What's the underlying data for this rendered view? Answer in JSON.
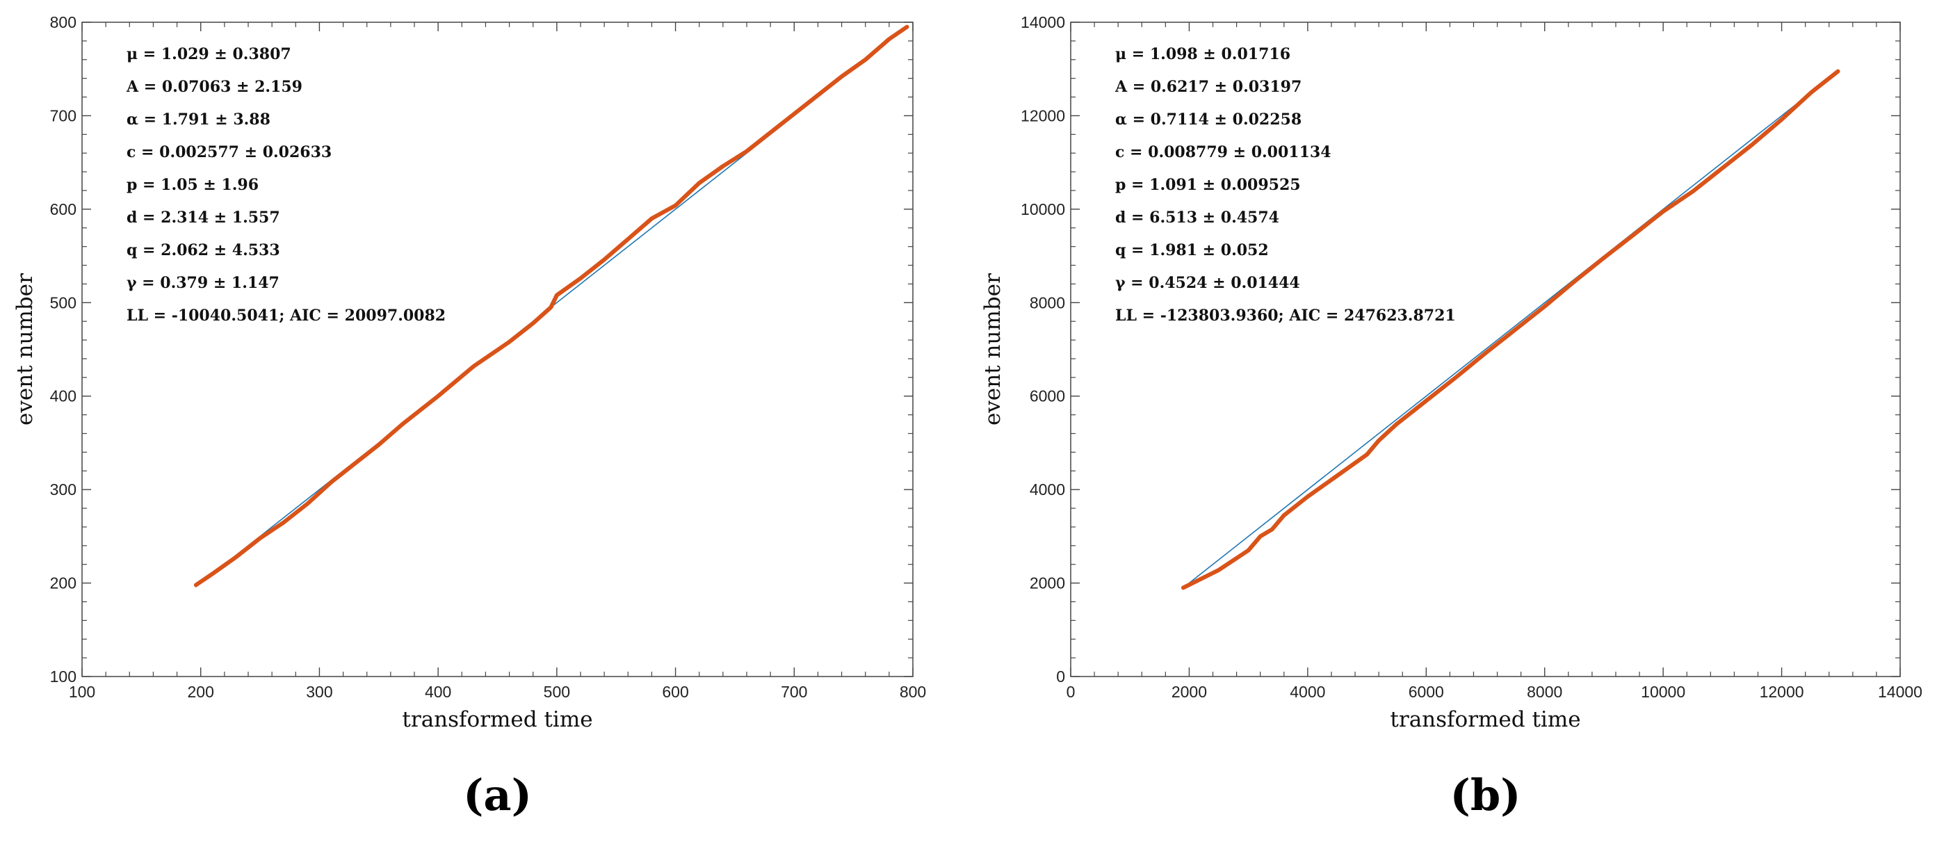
{
  "chart_data": [
    {
      "type": "line",
      "panel_label": "(a)",
      "xlabel": "transformed time",
      "ylabel": "event number",
      "xlim": [
        100,
        800
      ],
      "ylim": [
        100,
        800
      ],
      "xticks": [
        100,
        200,
        300,
        400,
        500,
        600,
        700,
        800
      ],
      "yticks": [
        100,
        200,
        300,
        400,
        500,
        600,
        700,
        800
      ],
      "annotations": [
        "μ = 1.029 ± 0.3807",
        "A = 0.07063 ± 2.159",
        "α = 1.791 ± 3.88",
        "c = 0.002577 ± 0.02633",
        "p = 1.05 ± 1.96",
        "d = 2.314 ± 1.557",
        "q = 2.062 ± 4.533",
        "γ = 0.379 ± 1.147",
        "LL = -10040.5041; AIC = 20097.0082"
      ],
      "series": [
        {
          "color": "#1f77b4",
          "x": [
            196,
            795
          ],
          "y": [
            196,
            795
          ]
        },
        {
          "color": "#d95319",
          "x": [
            196,
            210,
            230,
            250,
            270,
            290,
            310,
            330,
            350,
            370,
            400,
            430,
            460,
            480,
            495,
            500,
            520,
            540,
            560,
            580,
            600,
            620,
            640,
            660,
            680,
            700,
            720,
            740,
            760,
            780,
            795
          ],
          "y": [
            198,
            210,
            228,
            248,
            265,
            285,
            308,
            328,
            348,
            370,
            400,
            432,
            458,
            478,
            495,
            508,
            526,
            546,
            568,
            590,
            604,
            628,
            646,
            662,
            682,
            702,
            722,
            742,
            760,
            782,
            795
          ]
        }
      ]
    },
    {
      "type": "line",
      "panel_label": "(b)",
      "xlabel": "transformed time",
      "ylabel": "event number",
      "xlim": [
        0,
        14000
      ],
      "ylim": [
        0,
        14000
      ],
      "xticks": [
        0,
        2000,
        4000,
        6000,
        8000,
        10000,
        12000,
        14000
      ],
      "yticks": [
        0,
        2000,
        4000,
        6000,
        8000,
        10000,
        12000,
        14000
      ],
      "annotations": [
        "μ = 1.098 ± 0.01716",
        "A = 0.6217 ± 0.03197",
        "α = 0.7114 ± 0.02258",
        "c = 0.008779 ± 0.001134",
        "p = 1.091 ± 0.009525",
        "d = 6.513 ± 0.4574",
        "q = 1.981 ± 0.052",
        "γ = 0.4524 ± 0.01444",
        "LL = -123803.9360; AIC = 247623.8721"
      ],
      "series": [
        {
          "color": "#1f77b4",
          "x": [
            1900,
            12950
          ],
          "y": [
            1900,
            12950
          ]
        },
        {
          "color": "#d95319",
          "x": [
            1900,
            2500,
            3000,
            3200,
            3400,
            3600,
            4000,
            4500,
            5000,
            5200,
            5500,
            6000,
            6500,
            7000,
            7500,
            8000,
            8500,
            9000,
            9500,
            10000,
            10500,
            11000,
            11500,
            12000,
            12500,
            12950
          ],
          "y": [
            1900,
            2280,
            2700,
            3000,
            3150,
            3450,
            3850,
            4300,
            4750,
            5050,
            5400,
            5900,
            6400,
            6920,
            7420,
            7920,
            8450,
            8960,
            9450,
            9950,
            10380,
            10880,
            11380,
            11920,
            12500,
            12950
          ]
        }
      ]
    }
  ]
}
